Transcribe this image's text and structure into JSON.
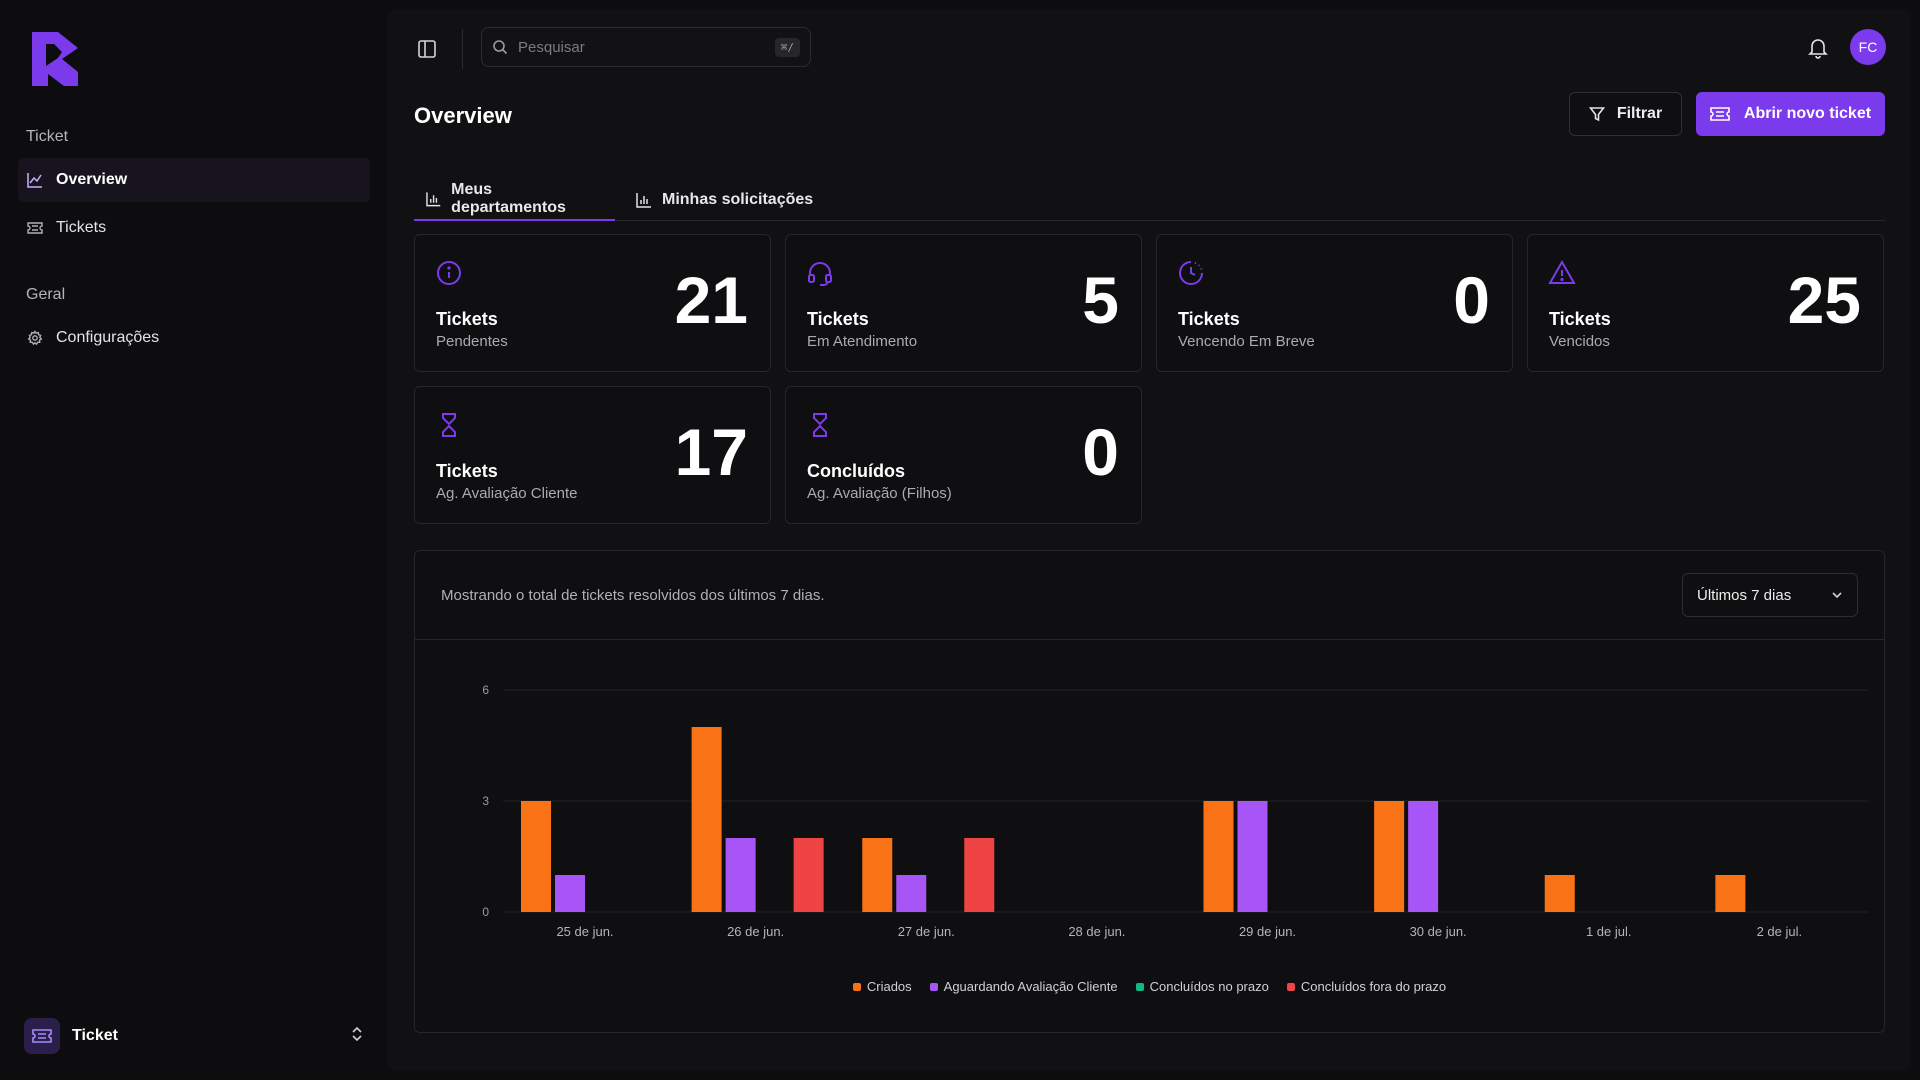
{
  "sidebar": {
    "sections": [
      {
        "label": "Ticket",
        "items": [
          {
            "label": "Overview"
          },
          {
            "label": "Tickets"
          }
        ]
      },
      {
        "label": "Geral",
        "items": [
          {
            "label": "Configurações"
          }
        ]
      }
    ],
    "footer_label": "Ticket"
  },
  "header": {
    "search_placeholder": "Pesquisar",
    "search_shortcut": "⌘/",
    "avatar_initials": "FC"
  },
  "page": {
    "title": "Overview",
    "filter_label": "Filtrar",
    "new_ticket_label": "Abrir novo ticket"
  },
  "tabs": [
    {
      "label": "Meus departamentos",
      "active": true
    },
    {
      "label": "Minhas solicitações",
      "active": false
    }
  ],
  "stats": [
    {
      "icon": "info-circle-icon",
      "title": "Tickets",
      "subtitle": "Pendentes",
      "value": "21"
    },
    {
      "icon": "headset-icon",
      "title": "Tickets",
      "subtitle": "Em Atendimento",
      "value": "5"
    },
    {
      "icon": "clock-pie-icon",
      "title": "Tickets",
      "subtitle": "Vencendo Em Breve",
      "value": "0"
    },
    {
      "icon": "warning-triangle-icon",
      "title": "Tickets",
      "subtitle": "Vencidos",
      "value": "25"
    },
    {
      "icon": "hourglass-icon",
      "title": "Tickets",
      "subtitle": "Ag. Avaliação Cliente",
      "value": "17"
    },
    {
      "icon": "hourglass-icon",
      "title": "Concluídos",
      "subtitle": "Ag. Avaliação (Filhos)",
      "value": "0"
    }
  ],
  "chart_panel": {
    "description": "Mostrando o total de tickets resolvidos dos últimos 7 dias.",
    "range_label": "Últimos 7 dias"
  },
  "colors": {
    "accent": "#7c3aed",
    "criados": "#f97316",
    "aguardando": "#a855f7",
    "no_prazo": "#10b981",
    "fora_prazo": "#ef4444"
  },
  "chart_data": {
    "type": "bar",
    "categories": [
      "25 de jun.",
      "26 de jun.",
      "27 de jun.",
      "28 de jun.",
      "29 de jun.",
      "30 de jun.",
      "1 de jul.",
      "2 de jul."
    ],
    "series": [
      {
        "name": "Criados",
        "color": "#f97316",
        "values": [
          3,
          5,
          2,
          0,
          3,
          3,
          1,
          1
        ]
      },
      {
        "name": "Aguardando Avaliação Cliente",
        "color": "#a855f7",
        "values": [
          1,
          2,
          1,
          0,
          3,
          3,
          0,
          0
        ]
      },
      {
        "name": "Concluídos no prazo",
        "color": "#10b981",
        "values": [
          0,
          0,
          0,
          0,
          0,
          0,
          0,
          0
        ]
      },
      {
        "name": "Concluídos fora do prazo",
        "color": "#ef4444",
        "values": [
          0,
          2,
          2,
          0,
          0,
          0,
          0,
          0
        ]
      }
    ],
    "yticks": [
      0,
      3,
      6
    ],
    "ylim": [
      0,
      6
    ],
    "grid": true,
    "legend": "bottom-center"
  }
}
